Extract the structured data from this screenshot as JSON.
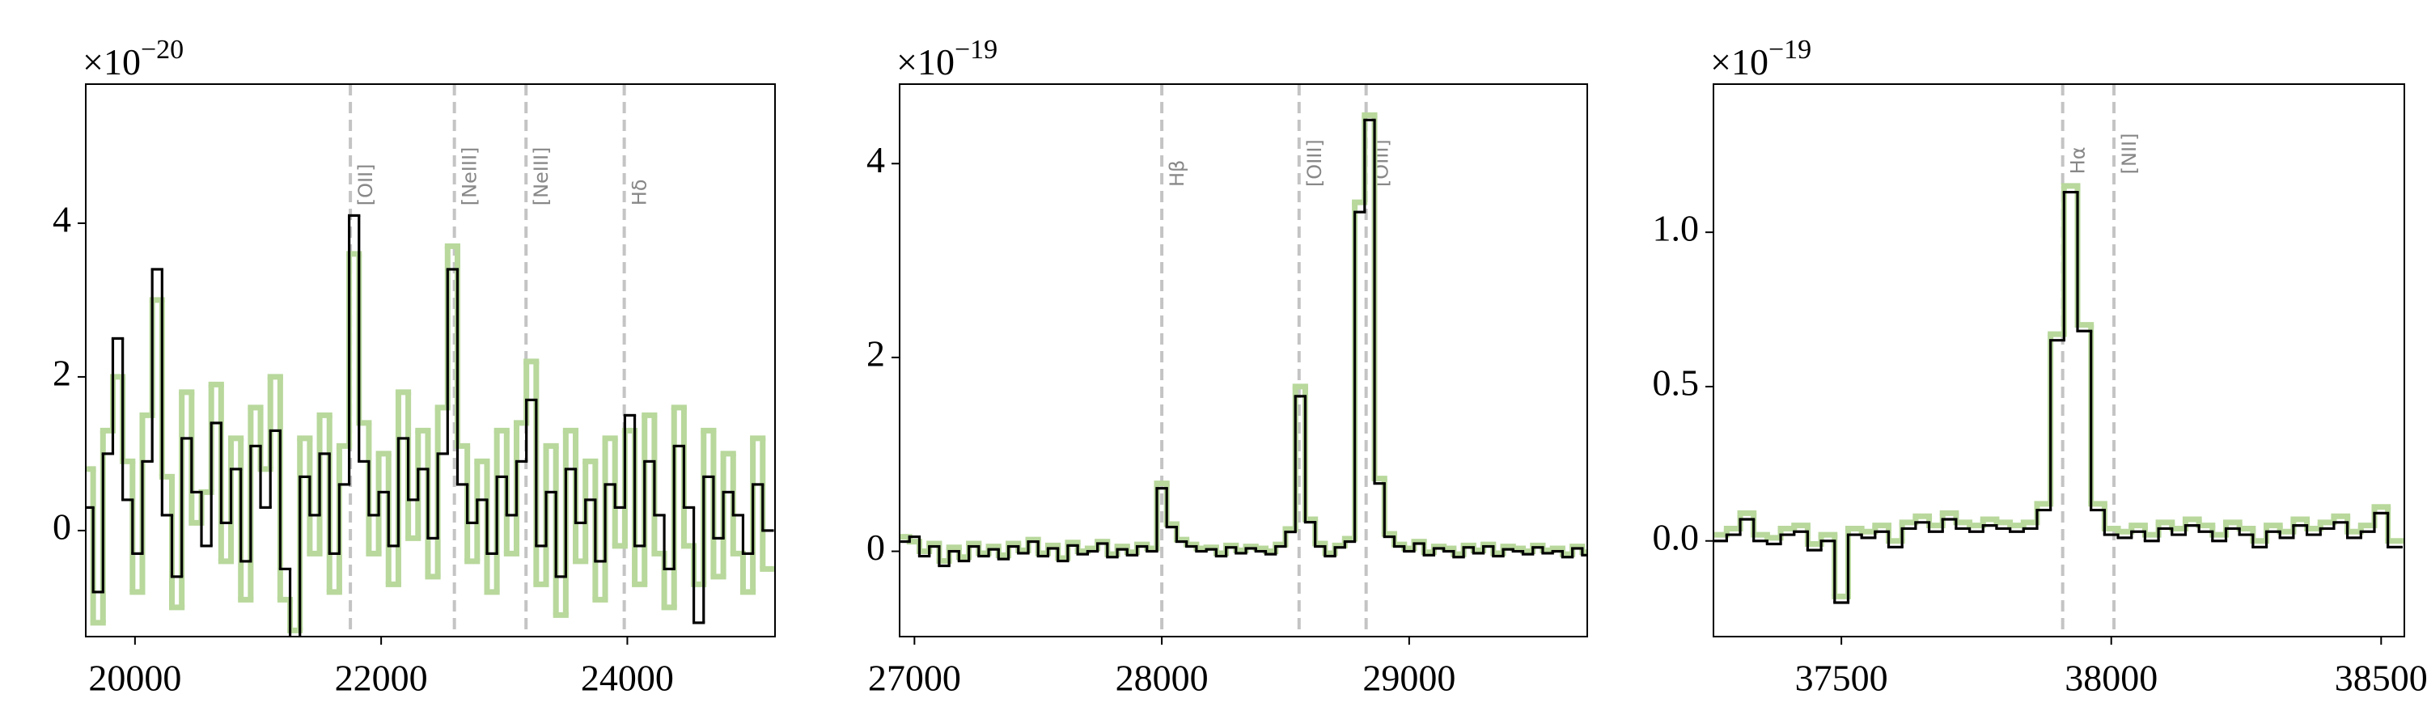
{
  "chart_data": [
    {
      "type": "line",
      "drawstyle": "steps-mid",
      "y_offset_text": {
        "base": "×10",
        "exponent": "−20"
      },
      "x": [
        19620,
        19700,
        19780,
        19860,
        19940,
        20020,
        20100,
        20180,
        20260,
        20340,
        20420,
        20500,
        20580,
        20660,
        20740,
        20820,
        20900,
        20980,
        21060,
        21140,
        21220,
        21300,
        21380,
        21460,
        21540,
        21620,
        21700,
        21780,
        21860,
        21940,
        22020,
        22100,
        22180,
        22260,
        22340,
        22420,
        22500,
        22580,
        22660,
        22740,
        22820,
        22900,
        22980,
        23060,
        23140,
        23220,
        23300,
        23380,
        23460,
        23540,
        23620,
        23700,
        23780,
        23860,
        23940,
        24020,
        24100,
        24180,
        24260,
        24340,
        24420,
        24500,
        24580,
        24660,
        24740,
        24820,
        24900,
        24980,
        25060,
        25140
      ],
      "series": [
        {
          "color": "#b8d89c",
          "values": [
            0.8,
            -1.2,
            1.3,
            2.0,
            0.9,
            -0.8,
            1.5,
            3.0,
            0.7,
            -1.0,
            1.8,
            0.1,
            0.5,
            1.9,
            -0.4,
            1.2,
            -0.9,
            1.6,
            0.8,
            2.0,
            -0.9,
            -1.3,
            1.2,
            -0.3,
            1.5,
            -0.8,
            1.1,
            3.6,
            1.4,
            -0.3,
            1.0,
            -0.7,
            1.8,
            -0.1,
            1.3,
            -0.6,
            1.6,
            3.7,
            1.1,
            -0.4,
            0.9,
            -0.8,
            1.3,
            -0.3,
            1.4,
            2.2,
            -0.7,
            1.1,
            -1.1,
            1.3,
            -0.4,
            0.9,
            -0.9,
            1.2,
            -0.2,
            1.3,
            -0.7,
            1.5,
            -0.3,
            -1.0,
            1.6,
            -0.2,
            -0.7,
            1.3,
            -0.6,
            1.0,
            -0.3,
            -0.8,
            1.2,
            -0.5
          ]
        },
        {
          "color": "#000000",
          "values": [
            0.3,
            -0.8,
            1.0,
            2.5,
            0.4,
            -0.3,
            0.9,
            3.4,
            0.2,
            -0.6,
            1.2,
            0.5,
            -0.2,
            1.4,
            0.1,
            0.8,
            -0.4,
            1.1,
            0.3,
            1.3,
            -0.5,
            -1.5,
            0.7,
            0.2,
            1.0,
            -0.3,
            0.6,
            4.1,
            0.9,
            0.2,
            0.5,
            -0.2,
            1.2,
            0.4,
            0.8,
            -0.1,
            1.0,
            3.4,
            0.6,
            0.1,
            0.4,
            -0.3,
            0.7,
            0.2,
            0.9,
            1.7,
            -0.2,
            0.5,
            -0.6,
            0.8,
            0.1,
            0.4,
            -0.4,
            0.6,
            0.3,
            1.5,
            -0.2,
            0.9,
            0.2,
            -0.5,
            1.1,
            0.3,
            -1.2,
            0.7,
            -0.1,
            0.5,
            0.2,
            -0.3,
            0.6,
            0.0
          ]
        }
      ],
      "xlim": [
        19600,
        25200
      ],
      "xticks": [
        20000,
        22000,
        24000
      ],
      "ylim": [
        -1.38,
        5.81
      ],
      "yticks": [
        0,
        2,
        4
      ],
      "vlines": [
        {
          "x": 21750,
          "label": "[OII]"
        },
        {
          "x": 22595,
          "label": "[NeIII]"
        },
        {
          "x": 23177,
          "label": "[NeIII]"
        },
        {
          "x": 23975,
          "label": "Hδ"
        }
      ]
    },
    {
      "type": "line",
      "drawstyle": "steps-mid",
      "y_offset_text": {
        "base": "×10",
        "exponent": "−19"
      },
      "x": [
        26960,
        27000,
        27040,
        27080,
        27120,
        27160,
        27200,
        27240,
        27280,
        27320,
        27360,
        27400,
        27440,
        27480,
        27520,
        27560,
        27600,
        27640,
        27680,
        27720,
        27760,
        27800,
        27840,
        27880,
        27920,
        27960,
        28000,
        28040,
        28080,
        28120,
        28160,
        28200,
        28240,
        28280,
        28320,
        28360,
        28400,
        28440,
        28480,
        28520,
        28560,
        28600,
        28640,
        28680,
        28720,
        28760,
        28800,
        28840,
        28880,
        28920,
        28960,
        29000,
        29040,
        29080,
        29120,
        29160,
        29200,
        29240,
        29280,
        29320,
        29360,
        29400,
        29440,
        29480,
        29520,
        29560,
        29600,
        29640,
        29680,
        29720
      ],
      "series": [
        {
          "color": "#b8d89c",
          "values": [
            0.15,
            0.1,
            0.0,
            0.08,
            -0.1,
            0.04,
            -0.06,
            0.08,
            -0.02,
            0.05,
            -0.04,
            0.08,
            0.01,
            0.12,
            -0.02,
            0.06,
            -0.07,
            0.09,
            0.0,
            0.03,
            0.1,
            -0.03,
            0.05,
            -0.01,
            0.07,
            0.03,
            0.7,
            0.28,
            0.12,
            0.07,
            0.03,
            0.04,
            -0.02,
            0.06,
            0.01,
            0.05,
            0.03,
            0.0,
            0.07,
            0.23,
            1.7,
            0.33,
            0.08,
            -0.02,
            0.06,
            0.13,
            3.6,
            4.5,
            0.75,
            0.18,
            0.07,
            0.03,
            0.1,
            -0.01,
            0.05,
            0.03,
            -0.03,
            0.06,
            0.01,
            0.07,
            -0.02,
            0.05,
            0.03,
            0.0,
            0.06,
            0.01,
            0.03,
            -0.03,
            0.05,
            -0.01
          ]
        },
        {
          "color": "#000000",
          "values": [
            0.1,
            0.15,
            -0.05,
            0.05,
            -0.15,
            0.0,
            -0.1,
            0.05,
            -0.05,
            0.02,
            -0.08,
            0.05,
            -0.02,
            0.1,
            -0.05,
            0.03,
            -0.1,
            0.06,
            -0.03,
            0.0,
            0.08,
            -0.06,
            0.02,
            -0.04,
            0.05,
            0.0,
            0.65,
            0.25,
            0.1,
            0.05,
            0.0,
            0.02,
            -0.05,
            0.04,
            -0.02,
            0.03,
            0.0,
            -0.03,
            0.05,
            0.2,
            1.6,
            0.3,
            0.05,
            -0.05,
            0.04,
            0.1,
            3.5,
            4.45,
            0.7,
            0.15,
            0.05,
            0.0,
            0.08,
            -0.04,
            0.03,
            0.0,
            -0.06,
            0.04,
            -0.02,
            0.05,
            -0.05,
            0.02,
            0.0,
            -0.03,
            0.04,
            -0.02,
            0.0,
            -0.06,
            0.03,
            -0.04
          ]
        }
      ],
      "xlim": [
        26940,
        29720
      ],
      "xticks": [
        27000,
        28000,
        29000
      ],
      "ylim": [
        -0.88,
        4.82
      ],
      "yticks": [
        0,
        2,
        4
      ],
      "vlines": [
        {
          "x": 28000,
          "label": "Hβ"
        },
        {
          "x": 28555,
          "label": "[OIII]"
        },
        {
          "x": 28826,
          "label": "[OIII]"
        }
      ]
    },
    {
      "type": "line",
      "drawstyle": "steps-mid",
      "y_offset_text": {
        "base": "×10",
        "exponent": "−19"
      },
      "x": [
        37275,
        37300,
        37325,
        37350,
        37375,
        37400,
        37425,
        37450,
        37475,
        37500,
        37525,
        37550,
        37575,
        37600,
        37625,
        37650,
        37675,
        37700,
        37725,
        37750,
        37775,
        37800,
        37825,
        37850,
        37875,
        37900,
        37925,
        37950,
        37975,
        38000,
        38025,
        38050,
        38075,
        38100,
        38125,
        38150,
        38175,
        38200,
        38225,
        38250,
        38275,
        38300,
        38325,
        38350,
        38375,
        38400,
        38425,
        38450,
        38475,
        38500,
        38525
      ],
      "series": [
        {
          "color": "#b8d89c",
          "values": [
            0.02,
            0.04,
            0.09,
            0.02,
            0.01,
            0.04,
            0.05,
            -0.01,
            0.02,
            -0.18,
            0.04,
            0.03,
            0.05,
            0.0,
            0.06,
            0.08,
            0.05,
            0.09,
            0.06,
            0.05,
            0.07,
            0.06,
            0.05,
            0.06,
            0.12,
            0.67,
            1.15,
            0.7,
            0.12,
            0.04,
            0.03,
            0.05,
            0.02,
            0.06,
            0.04,
            0.07,
            0.05,
            0.02,
            0.06,
            0.04,
            0.0,
            0.05,
            0.03,
            0.07,
            0.04,
            0.06,
            0.08,
            0.03,
            0.05,
            0.11,
            0.0
          ]
        },
        {
          "color": "#000000",
          "values": [
            0.0,
            0.02,
            0.07,
            0.0,
            -0.01,
            0.02,
            0.03,
            -0.03,
            0.0,
            -0.2,
            0.02,
            0.01,
            0.03,
            -0.02,
            0.04,
            0.06,
            0.03,
            0.07,
            0.04,
            0.03,
            0.05,
            0.04,
            0.03,
            0.04,
            0.1,
            0.65,
            1.13,
            0.68,
            0.1,
            0.02,
            0.01,
            0.03,
            0.0,
            0.04,
            0.02,
            0.05,
            0.03,
            0.0,
            0.04,
            0.02,
            -0.02,
            0.03,
            0.01,
            0.05,
            0.02,
            0.04,
            0.06,
            0.01,
            0.03,
            0.09,
            -0.02
          ]
        }
      ],
      "xlim": [
        37263,
        38543
      ],
      "xticks": [
        37500,
        38000,
        38500
      ],
      "ylim": [
        -0.31,
        1.48
      ],
      "yticks": [
        {
          "value": 0,
          "label": "0.0"
        },
        {
          "value": 0.5,
          "label": "0.5"
        },
        {
          "value": 1,
          "label": "1.0"
        }
      ],
      "vlines": [
        {
          "x": 37910,
          "label": "Hα"
        },
        {
          "x": 38005,
          "label": "[NII]"
        }
      ]
    }
  ]
}
